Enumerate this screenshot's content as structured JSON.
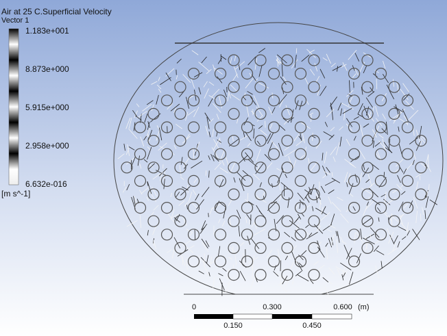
{
  "title": "Air at 25 C.Superficial Velocity",
  "subtitle": "Vector 1",
  "legend": {
    "labels": [
      "1.183e+001",
      "8.873e+000",
      "5.915e+000",
      "2.958e+000",
      "6.632e-016"
    ],
    "unit": "[m s^-1]"
  },
  "scale_bar": {
    "top_labels": [
      "0",
      "0.300",
      "0.600"
    ],
    "unit": "(m)",
    "bottom_labels": [
      "0.150",
      "0.450"
    ]
  }
}
